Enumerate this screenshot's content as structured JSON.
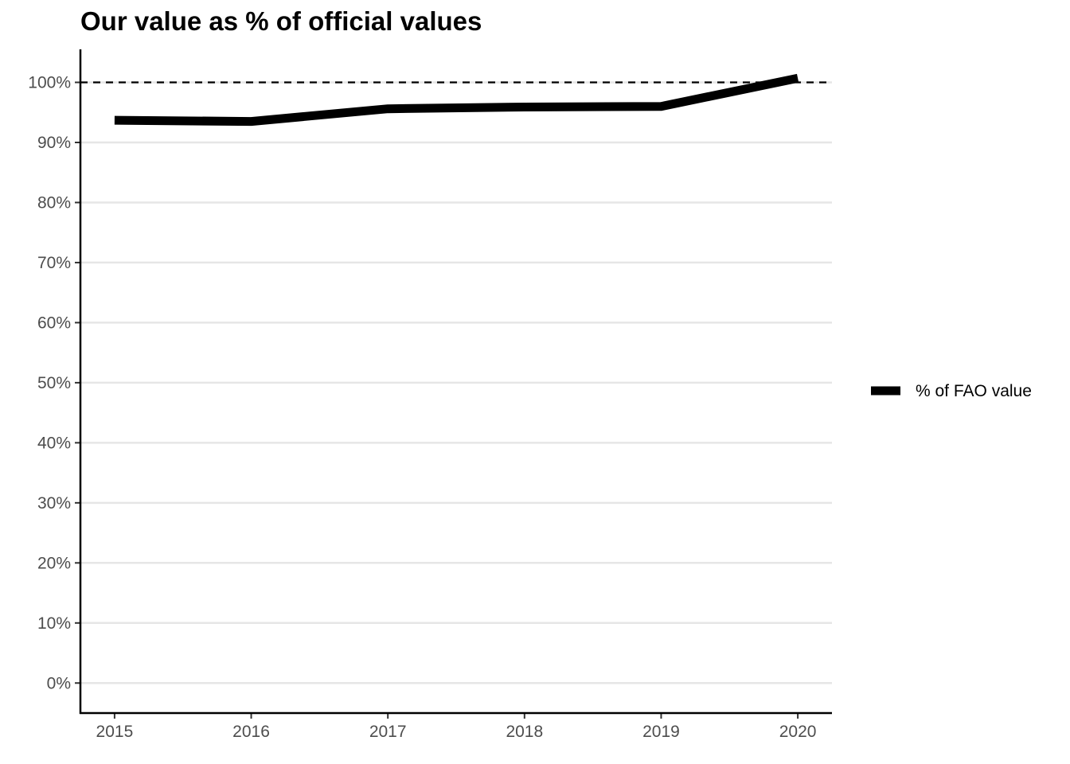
{
  "chart_data": {
    "type": "line",
    "title": "Our value as % of official values",
    "xlabel": "",
    "ylabel": "",
    "x": [
      2015,
      2016,
      2017,
      2018,
      2019,
      2020
    ],
    "x_tick_labels": [
      "2015",
      "2016",
      "2017",
      "2018",
      "2019",
      "2020"
    ],
    "y_ticks": [
      0,
      10,
      20,
      30,
      40,
      50,
      60,
      70,
      80,
      90,
      100
    ],
    "y_tick_labels": [
      "0%",
      "10%",
      "20%",
      "30%",
      "40%",
      "50%",
      "60%",
      "70%",
      "80%",
      "90%",
      "100%"
    ],
    "ylim": [
      -5,
      105.5
    ],
    "xlim": [
      2014.75,
      2020.25
    ],
    "grid": "horizontal",
    "series": [
      {
        "name": "% of FAO value",
        "color": "#000000",
        "values": [
          93.7,
          93.5,
          95.6,
          95.9,
          96.0,
          100.7
        ]
      }
    ],
    "reference_line": {
      "y": 100,
      "style": "dashed",
      "color": "#000000"
    },
    "legend": {
      "position": "right",
      "entries": [
        "% of FAO value"
      ]
    }
  }
}
